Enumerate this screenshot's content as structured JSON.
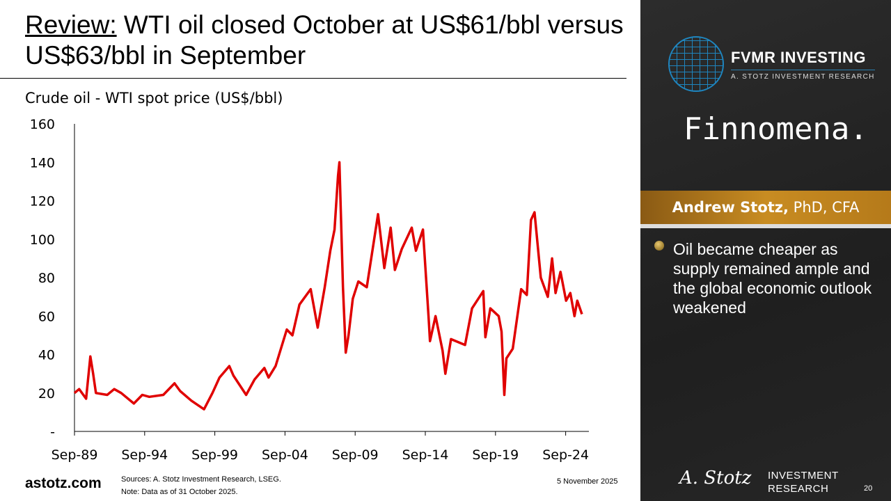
{
  "slide": {
    "title_prefix": "Review:",
    "title_rest": " WTI oil closed October at US$61/bbl versus US$63/bbl in September",
    "footer_url": "astotz.com",
    "sources": "Sources: A. Stotz Investment Research, LSEG.",
    "note": "Note: Data as of 31 October 2025.",
    "date": "5 November 2025",
    "page": "20"
  },
  "sidebar": {
    "logo_title": "FVMR INVESTING",
    "logo_sub": "A. STOTZ INVESTMENT RESEARCH",
    "partner": "Finnomena.",
    "author_name": "Andrew Stotz,",
    "author_cred": " PhD, CFA",
    "bullet": "Oil became cheaper as supply remained ample and the global economic outlook weakened",
    "sig": "A. Stotz",
    "brand_line1": "INVESTMENT",
    "brand_line2": "RESEARCH"
  },
  "chart_data": {
    "type": "line",
    "title": "Crude oil - WTI spot price (US$/bbl)",
    "xlabel": "",
    "ylabel": "",
    "ylim": [
      0,
      160
    ],
    "yticks": [
      0,
      20,
      40,
      60,
      80,
      100,
      120,
      140,
      160
    ],
    "ytick_labels": [
      "-",
      "20",
      "40",
      "60",
      "80",
      "100",
      "120",
      "140",
      "160"
    ],
    "xtick_labels": [
      "Sep-89",
      "Sep-94",
      "Sep-99",
      "Sep-04",
      "Sep-09",
      "Sep-14",
      "Sep-19",
      "Sep-24"
    ],
    "xtick_years": [
      1989.67,
      1994.67,
      1999.67,
      2004.67,
      2009.67,
      2014.67,
      2019.67,
      2024.67
    ],
    "xlim": [
      1989.67,
      2025.83
    ],
    "color": "#e00000",
    "series": [
      {
        "name": "WTI",
        "x": [
          1989.67,
          1990.0,
          1990.5,
          1990.8,
          1991.0,
          1991.2,
          1992.0,
          1992.5,
          1993.0,
          1993.9,
          1994.5,
          1995.0,
          1996.0,
          1996.8,
          1997.2,
          1998.0,
          1998.9,
          1999.5,
          2000.0,
          2000.7,
          2001.0,
          2001.9,
          2002.5,
          2003.2,
          2003.5,
          2004.0,
          2004.8,
          2005.2,
          2005.7,
          2006.5,
          2007.0,
          2007.5,
          2007.9,
          2008.2,
          2008.45,
          2008.55,
          2008.8,
          2009.0,
          2009.2,
          2009.5,
          2009.9,
          2010.5,
          2011.3,
          2011.75,
          2012.2,
          2012.5,
          2013.0,
          2013.7,
          2014.0,
          2014.5,
          2014.9,
          2015.0,
          2015.4,
          2015.9,
          2016.1,
          2016.5,
          2017.5,
          2018.0,
          2018.8,
          2018.95,
          2019.3,
          2019.9,
          2020.1,
          2020.3,
          2020.45,
          2020.9,
          2021.5,
          2021.9,
          2022.2,
          2022.45,
          2022.9,
          2023.4,
          2023.7,
          2023.95,
          2024.3,
          2024.7,
          2025.0,
          2025.3,
          2025.5,
          2025.83
        ],
        "values": [
          20,
          22,
          17,
          39,
          30,
          20,
          19,
          22,
          20,
          14.5,
          19,
          18,
          19,
          25,
          21,
          16,
          11.5,
          20,
          28,
          34,
          29,
          19,
          27,
          33,
          28,
          34,
          53,
          50,
          66,
          74,
          54,
          75,
          94,
          105,
          133,
          140,
          75,
          41,
          50,
          69,
          78,
          75,
          113,
          85,
          106,
          84,
          95,
          106,
          94,
          105,
          60,
          47,
          60,
          42,
          30,
          48,
          45,
          64,
          73,
          49,
          64,
          60,
          52,
          19,
          38,
          43,
          74,
          71,
          110,
          114,
          80,
          70,
          90,
          72,
          83,
          68,
          72,
          60,
          68,
          61
        ]
      }
    ]
  }
}
